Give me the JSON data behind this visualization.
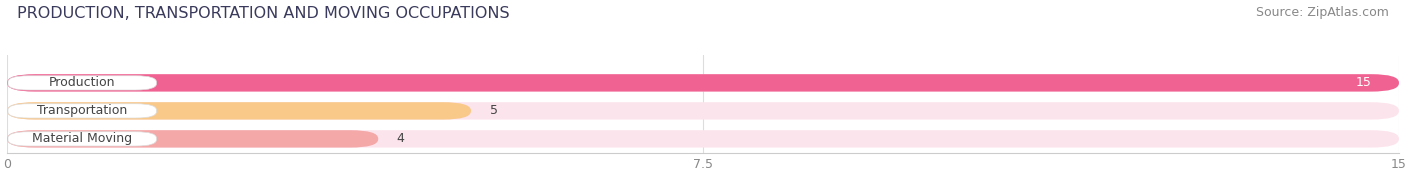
{
  "title": "PRODUCTION, TRANSPORTATION AND MOVING OCCUPATIONS",
  "source": "Source: ZipAtlas.com",
  "categories": [
    "Production",
    "Transportation",
    "Material Moving"
  ],
  "values": [
    15,
    5,
    4
  ],
  "bar_colors": [
    "#f06292",
    "#f9c98a",
    "#f4a8a8"
  ],
  "bar_bg_colors": [
    "#fce4ec",
    "#fce4ec",
    "#fce4ec"
  ],
  "xlim": [
    0,
    15
  ],
  "xticks": [
    0,
    7.5,
    15
  ],
  "figsize": [
    14.06,
    1.96
  ],
  "dpi": 100,
  "title_fontsize": 11.5,
  "source_fontsize": 9,
  "label_fontsize": 9,
  "value_fontsize": 9,
  "bg_color": "#ffffff",
  "title_color": "#3a3a5c",
  "source_color": "#888888",
  "tick_color": "#888888"
}
